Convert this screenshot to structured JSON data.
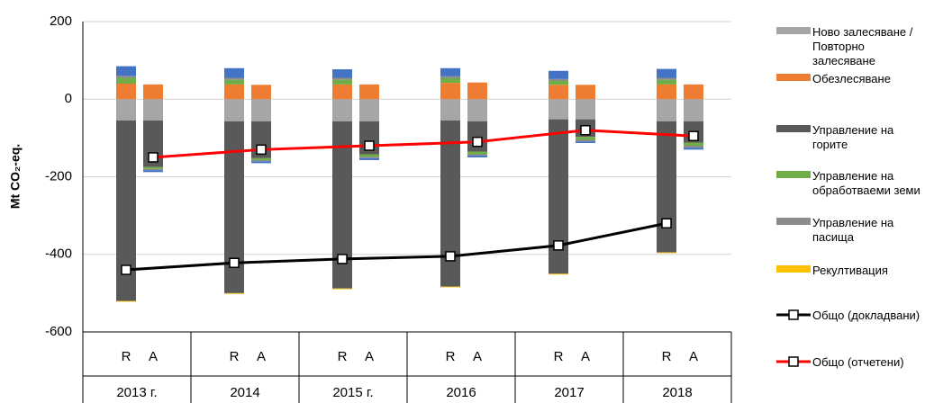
{
  "chart_data": {
    "type": "bar",
    "y_label": "Mt CO₂-eq.",
    "groups": [
      "2013 г.",
      "2014",
      "2015 г.",
      "2016",
      "2017",
      "2018"
    ],
    "bar_labels": [
      "R",
      "A"
    ],
    "ylim": [
      -600,
      200
    ],
    "yticks": [
      -600,
      -400,
      -200,
      0,
      200
    ],
    "grid": true,
    "series": [
      {
        "name": "Ново залесяване / Повторно залесяване",
        "color": "#a6a6a6",
        "values": [
          -55,
          -55,
          -57,
          -57,
          -57,
          -57,
          -55,
          -57,
          -52,
          -52,
          -57,
          -57
        ]
      },
      {
        "name": "Обезлесяване",
        "color": "#ed7d31",
        "values": [
          40,
          38,
          38,
          37,
          38,
          38,
          42,
          43,
          37,
          37,
          38,
          38
        ]
      },
      {
        "name": "Управление на горите",
        "color": "#595959",
        "values": [
          -465,
          -120,
          -443,
          -95,
          -431,
          -85,
          -428,
          -78,
          -398,
          -45,
          -338,
          -55
        ]
      },
      {
        "name": "Управление на обработваеми земи",
        "color": "#70ad47",
        "values": [
          15,
          -5,
          12,
          -5,
          12,
          -6,
          12,
          -7,
          10,
          -8,
          12,
          -8
        ]
      },
      {
        "name": "Управление на пасища",
        "color": "#8c8c8c",
        "values": [
          5,
          -3,
          5,
          -3,
          5,
          -4,
          5,
          -3,
          5,
          -4,
          5,
          -5
        ]
      },
      {
        "color": "#4472c4",
        "values": [
          25,
          -5,
          25,
          -5,
          22,
          -5,
          21,
          -5,
          21,
          -4,
          23,
          -5
        ]
      },
      {
        "name": "Рекултивация",
        "color": "#ffc000",
        "values": [
          -2,
          0,
          -2,
          0,
          -2,
          0,
          -2,
          0,
          -2,
          0,
          -2,
          0
        ]
      }
    ],
    "lines": [
      {
        "name": "Общо (докладвани)",
        "color": "#000000",
        "values": [
          -440,
          -422,
          -412,
          -405,
          -377,
          -320
        ]
      },
      {
        "name": "Общо (отчетени)",
        "color": "#ff0000",
        "values": [
          -150,
          -130,
          -120,
          -110,
          -80,
          -95
        ]
      }
    ]
  }
}
